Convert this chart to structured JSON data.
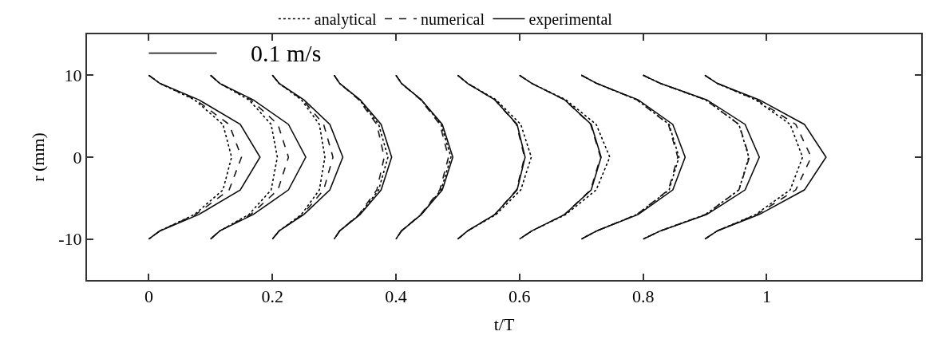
{
  "chart_data": {
    "type": "line",
    "xlabel": "t/T",
    "ylabel": "r (mm)",
    "xlim": [
      -0.1,
      1.25
    ],
    "ylim": [
      -15,
      15
    ],
    "xticks": [
      0,
      0.2,
      0.4,
      0.6,
      0.8,
      1
    ],
    "yticks": [
      -10,
      0,
      10
    ],
    "legend": "top",
    "series": [
      {
        "name": "analytical",
        "color": "#000000",
        "line_style": "dotted",
        "x": [
          0,
          0.018,
          0.074,
          0.12,
          0.134,
          0.12,
          0.074,
          0.018,
          0,
          null,
          0.1,
          0.115,
          0.162,
          0.198,
          0.208,
          0.198,
          0.162,
          0.115,
          0.1,
          null,
          0.2,
          0.211,
          0.247,
          0.276,
          0.285,
          0.276,
          0.247,
          0.211,
          0.2,
          null,
          0.3,
          0.309,
          0.341,
          0.372,
          0.387,
          0.372,
          0.341,
          0.309,
          0.3,
          null,
          0.4,
          0.409,
          0.441,
          0.473,
          0.489,
          0.473,
          0.441,
          0.409,
          0.4,
          null,
          0.5,
          0.516,
          0.562,
          0.602,
          0.619,
          0.602,
          0.562,
          0.516,
          0.5,
          null,
          0.6,
          0.62,
          0.675,
          0.724,
          0.746,
          0.724,
          0.675,
          0.62,
          0.6,
          null,
          0.7,
          0.725,
          0.79,
          0.842,
          0.858,
          0.842,
          0.79,
          0.725,
          0.7,
          null,
          0.8,
          0.828,
          0.901,
          0.955,
          0.971,
          0.955,
          0.901,
          0.828,
          0.8,
          null,
          0.9,
          0.92,
          0.982,
          1.038,
          1.058,
          1.038,
          0.982,
          0.92,
          0.9
        ],
        "values": [
          10,
          9,
          7,
          4,
          0,
          -4,
          -7,
          -9,
          -10,
          null,
          10,
          9,
          7,
          4,
          0,
          -4,
          -7,
          -9,
          -10,
          null,
          10,
          9,
          7,
          4,
          0,
          -4,
          -7,
          -9,
          -10,
          null,
          10,
          9,
          7,
          4,
          0,
          -4,
          -7,
          -9,
          -10,
          null,
          10,
          9,
          7,
          4,
          0,
          -4,
          -7,
          -9,
          -10,
          null,
          10,
          9,
          7,
          4,
          0,
          -4,
          -7,
          -9,
          -10,
          null,
          10,
          9,
          7,
          4,
          0,
          -4,
          -7,
          -9,
          -10,
          null,
          10,
          9,
          7,
          4,
          0,
          -4,
          -7,
          -9,
          -10,
          null,
          10,
          9,
          7,
          4,
          0,
          -4,
          -7,
          -9,
          -10,
          null,
          10,
          9,
          7,
          4,
          0,
          -4,
          -7,
          -9,
          -10
        ]
      },
      {
        "name": "numerical",
        "color": "#1a1a1a",
        "line_style": "dashed",
        "x": [
          0,
          0.018,
          0.076,
          0.13,
          0.15,
          0.13,
          0.076,
          0.018,
          0,
          null,
          0.1,
          0.115,
          0.165,
          0.209,
          0.226,
          0.209,
          0.165,
          0.115,
          0.1,
          null,
          0.2,
          0.211,
          0.249,
          0.283,
          0.298,
          0.283,
          0.249,
          0.211,
          0.2,
          null,
          0.3,
          0.309,
          0.34,
          0.369,
          0.381,
          0.369,
          0.34,
          0.309,
          0.3,
          null,
          0.4,
          0.409,
          0.44,
          0.471,
          0.485,
          0.471,
          0.44,
          0.409,
          0.4,
          null,
          0.5,
          0.516,
          0.56,
          0.595,
          0.608,
          0.595,
          0.56,
          0.516,
          0.5,
          null,
          0.6,
          0.62,
          0.673,
          0.715,
          0.731,
          0.715,
          0.673,
          0.62,
          0.6,
          null,
          0.7,
          0.725,
          0.79,
          0.841,
          0.856,
          0.841,
          0.79,
          0.725,
          0.7,
          null,
          0.8,
          0.828,
          0.901,
          0.955,
          0.972,
          0.955,
          0.901,
          0.828,
          0.8,
          null,
          0.9,
          0.92,
          0.984,
          1.047,
          1.072,
          1.047,
          0.984,
          0.92,
          0.9
        ],
        "values": [
          10,
          9,
          7,
          4,
          0,
          -4,
          -7,
          -9,
          -10,
          null,
          10,
          9,
          7,
          4,
          0,
          -4,
          -7,
          -9,
          -10,
          null,
          10,
          9,
          7,
          4,
          0,
          -4,
          -7,
          -9,
          -10,
          null,
          10,
          9,
          7,
          4,
          0,
          -4,
          -7,
          -9,
          -10,
          null,
          10,
          9,
          7,
          4,
          0,
          -4,
          -7,
          -9,
          -10,
          null,
          10,
          9,
          7,
          4,
          0,
          -4,
          -7,
          -9,
          -10,
          null,
          10,
          9,
          7,
          4,
          0,
          -4,
          -7,
          -9,
          -10,
          null,
          10,
          9,
          7,
          4,
          0,
          -4,
          -7,
          -9,
          -10,
          null,
          10,
          9,
          7,
          4,
          0,
          -4,
          -7,
          -9,
          -10,
          null,
          10,
          9,
          7,
          4,
          0,
          -4,
          -7,
          -9,
          -10
        ]
      },
      {
        "name": "experimental",
        "color": "#0d0d0d",
        "line_style": "solid",
        "x": [
          0,
          0.018,
          0.081,
          0.148,
          0.18,
          0.148,
          0.081,
          0.018,
          0,
          null,
          0.1,
          0.115,
          0.169,
          0.226,
          0.254,
          0.226,
          0.169,
          0.115,
          0.1,
          null,
          0.2,
          0.211,
          0.251,
          0.293,
          0.314,
          0.293,
          0.251,
          0.211,
          0.2,
          null,
          0.3,
          0.309,
          0.342,
          0.376,
          0.393,
          0.376,
          0.342,
          0.309,
          0.3,
          null,
          0.4,
          0.409,
          0.441,
          0.475,
          0.492,
          0.475,
          0.441,
          0.409,
          0.4,
          null,
          0.5,
          0.516,
          0.56,
          0.596,
          0.609,
          0.596,
          0.56,
          0.516,
          0.5,
          null,
          0.6,
          0.62,
          0.673,
          0.716,
          0.732,
          0.716,
          0.673,
          0.62,
          0.6,
          null,
          0.7,
          0.725,
          0.792,
          0.848,
          0.868,
          0.848,
          0.792,
          0.725,
          0.7,
          null,
          0.8,
          0.828,
          0.903,
          0.965,
          0.988,
          0.965,
          0.903,
          0.828,
          0.8,
          null,
          0.9,
          0.92,
          0.988,
          1.061,
          1.096,
          1.061,
          0.988,
          0.92,
          0.9
        ],
        "values": [
          10,
          9,
          7,
          4,
          0,
          -4,
          -7,
          -9,
          -10,
          null,
          10,
          9,
          7,
          4,
          0,
          -4,
          -7,
          -9,
          -10,
          null,
          10,
          9,
          7,
          4,
          0,
          -4,
          -7,
          -9,
          -10,
          null,
          10,
          9,
          7,
          4,
          0,
          -4,
          -7,
          -9,
          -10,
          null,
          10,
          9,
          7,
          4,
          0,
          -4,
          -7,
          -9,
          -10,
          null,
          10,
          9,
          7,
          4,
          0,
          -4,
          -7,
          -9,
          -10,
          null,
          10,
          9,
          7,
          4,
          0,
          -4,
          -7,
          -9,
          -10,
          null,
          10,
          9,
          7,
          4,
          0,
          -4,
          -7,
          -9,
          -10,
          null,
          10,
          9,
          7,
          4,
          0,
          -4,
          -7,
          -9,
          -10,
          null,
          10,
          9,
          7,
          4,
          0,
          -4,
          -7,
          -9,
          -10
        ]
      },
      {
        "color": "#262626",
        "line_style": "solid",
        "x": [
          0,
          0.11
        ],
        "values": [
          12.7,
          12.7
        ]
      }
    ],
    "annotations": [
      {
        "text": "0.1 m/s",
        "x": 0.11,
        "y": 12.7
      }
    ]
  }
}
